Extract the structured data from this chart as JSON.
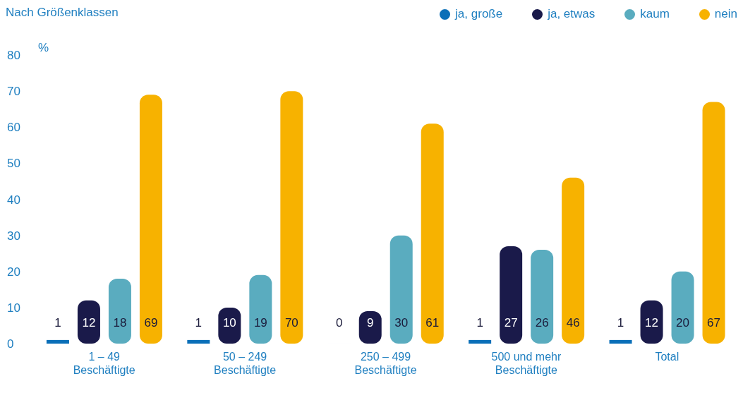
{
  "chart_data": {
    "type": "bar",
    "title": "Nach Größenklassen",
    "ylabel": "%",
    "categories": [
      "1 – 49\nBeschäftigte",
      "50 – 249\nBeschäftigte",
      "250 – 499\nBeschäftigte",
      "500 und mehr\nBeschäftigte",
      "Total"
    ],
    "series": [
      {
        "name": "ja, große",
        "color": "#0a6fb8",
        "values": [
          1,
          1,
          0,
          1,
          1
        ]
      },
      {
        "name": "ja, etwas",
        "color": "#1a1a4a",
        "values": [
          12,
          10,
          9,
          27,
          12
        ]
      },
      {
        "name": "kaum",
        "color": "#5aacbf",
        "values": [
          18,
          19,
          30,
          26,
          20
        ]
      },
      {
        "name": "nein",
        "color": "#f7b200",
        "values": [
          69,
          70,
          61,
          46,
          67
        ]
      }
    ],
    "ylim": [
      0,
      80
    ],
    "yticks": [
      0,
      10,
      20,
      30,
      40,
      50,
      60,
      70,
      80
    ],
    "grid": false,
    "legend": "top right",
    "data_labels": true
  }
}
